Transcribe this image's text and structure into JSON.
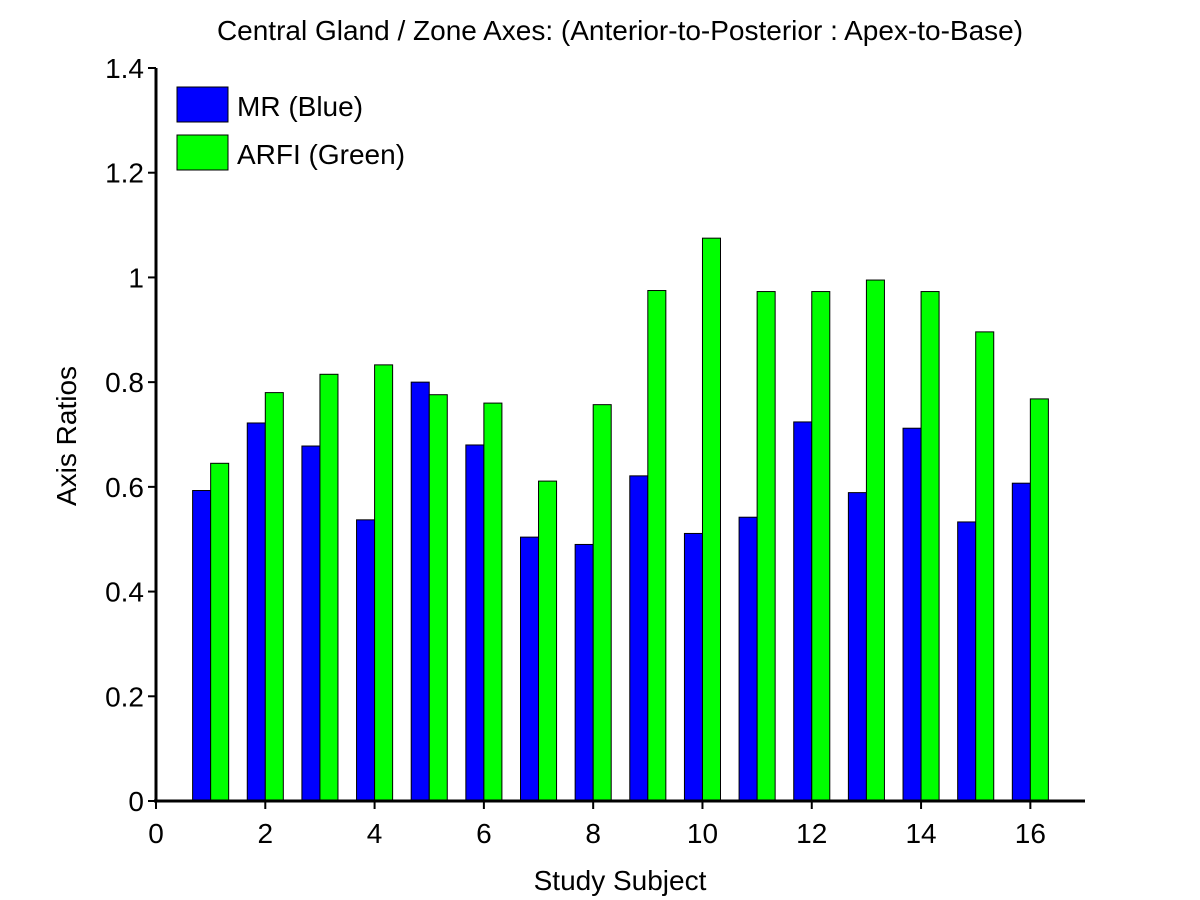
{
  "chart_data": {
    "type": "bar",
    "title": "Central Gland / Zone Axes: (Anterior-to-Posterior : Apex-to-Base)",
    "xlabel": "Study Subject",
    "ylabel": "Axis Ratios",
    "xlim": [
      0,
      17
    ],
    "ylim": [
      0,
      1.4
    ],
    "xticks": [
      "0",
      "2",
      "4",
      "6",
      "8",
      "10",
      "12",
      "14",
      "16"
    ],
    "yticks": [
      "0",
      "0.2",
      "0.4",
      "0.6",
      "0.8",
      "1",
      "1.2",
      "1.4"
    ],
    "x": [
      1,
      2,
      3,
      4,
      5,
      6,
      7,
      8,
      9,
      10,
      11,
      12,
      13,
      14,
      15,
      16
    ],
    "series": [
      {
        "name": "MR (Blue)",
        "color": "#0000ff",
        "values": [
          0.593,
          0.722,
          0.678,
          0.537,
          0.8,
          0.68,
          0.504,
          0.49,
          0.621,
          0.511,
          0.542,
          0.724,
          0.589,
          0.712,
          0.533,
          0.607
        ]
      },
      {
        "name": "ARFI (Green)",
        "color": "#00ff00",
        "values": [
          0.645,
          0.78,
          0.815,
          0.833,
          0.776,
          0.76,
          0.611,
          0.757,
          0.975,
          1.075,
          0.973,
          0.973,
          0.995,
          0.973,
          0.896,
          0.768
        ]
      }
    ],
    "legend": "top-left",
    "grid": false
  }
}
